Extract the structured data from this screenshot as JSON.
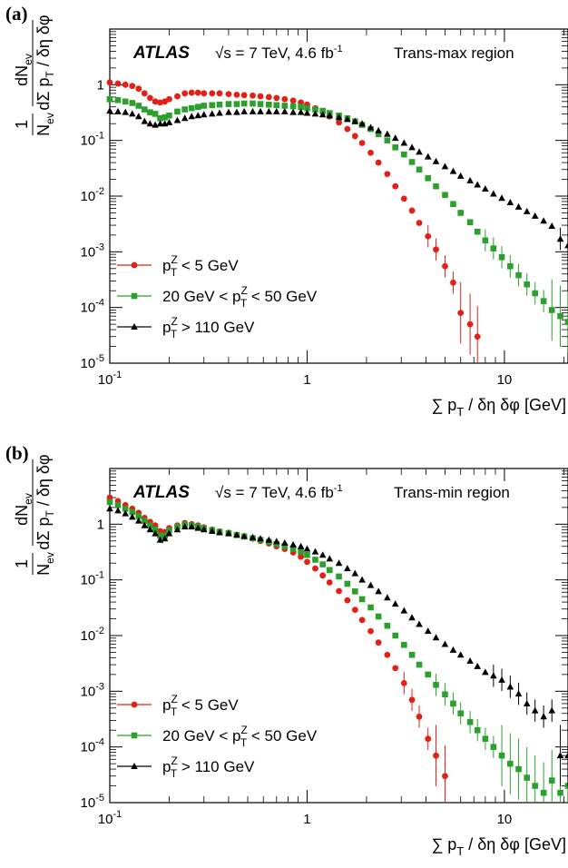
{
  "chart_data": [
    {
      "type": "scatter",
      "panel_label": "(a)",
      "experiment": "ATLAS",
      "energy_text": "√s = 7 TeV, 4.6 fb",
      "energy_sup": "-1",
      "region": "Trans-max region",
      "xlabel": "∑ pT / δη δφ [GeV]",
      "ylabel": "1/Nev dNev / dΣ pT / δη δφ",
      "xscale": "log",
      "yscale": "log",
      "xlim": [
        0.1,
        21
      ],
      "ylim": [
        1e-05,
        10
      ],
      "legend_position": "bottom-left",
      "series": [
        {
          "name": "pTZ < 5 GeV",
          "color": "#e32017",
          "marker": "circle",
          "x": [
            0.1,
            0.11,
            0.12,
            0.13,
            0.14,
            0.15,
            0.16,
            0.17,
            0.18,
            0.19,
            0.2,
            0.22,
            0.24,
            0.26,
            0.28,
            0.3,
            0.33,
            0.36,
            0.4,
            0.44,
            0.48,
            0.53,
            0.58,
            0.64,
            0.7,
            0.77,
            0.85,
            0.93,
            1.0,
            1.1,
            1.2,
            1.3,
            1.45,
            1.6,
            1.75,
            1.9,
            2.1,
            2.3,
            2.55,
            2.8,
            3.1,
            3.4,
            3.7,
            4.1,
            4.5,
            5.0,
            5.5,
            6.0,
            6.7,
            7.3
          ],
          "y": [
            1.1,
            1.05,
            1.0,
            0.95,
            0.85,
            0.7,
            0.58,
            0.5,
            0.48,
            0.5,
            0.55,
            0.62,
            0.7,
            0.72,
            0.72,
            0.7,
            0.7,
            0.7,
            0.68,
            0.66,
            0.65,
            0.64,
            0.62,
            0.6,
            0.58,
            0.55,
            0.52,
            0.48,
            0.44,
            0.38,
            0.32,
            0.27,
            0.21,
            0.16,
            0.12,
            0.09,
            0.06,
            0.04,
            0.025,
            0.015,
            0.009,
            0.0055,
            0.0033,
            0.0019,
            0.0011,
            0.00055,
            0.00028,
            8e-05,
            5e-05,
            3e-05
          ]
        },
        {
          "name": "20 GeV < pTZ < 50 GeV",
          "color": "#2ca02c",
          "marker": "square",
          "x": [
            0.1,
            0.11,
            0.12,
            0.13,
            0.14,
            0.15,
            0.16,
            0.17,
            0.18,
            0.19,
            0.2,
            0.22,
            0.24,
            0.26,
            0.28,
            0.3,
            0.33,
            0.36,
            0.4,
            0.44,
            0.48,
            0.53,
            0.58,
            0.64,
            0.7,
            0.77,
            0.85,
            0.93,
            1.0,
            1.1,
            1.2,
            1.3,
            1.45,
            1.6,
            1.75,
            1.9,
            2.1,
            2.3,
            2.55,
            2.8,
            3.1,
            3.4,
            3.7,
            4.1,
            4.5,
            5.0,
            5.5,
            6.0,
            6.7,
            7.3,
            8.0,
            8.8,
            9.7,
            10.7,
            11.8,
            13.0,
            14.3,
            15.8,
            17.4,
            19.2,
            21.0
          ],
          "y": [
            0.55,
            0.53,
            0.5,
            0.47,
            0.42,
            0.36,
            0.32,
            0.3,
            0.25,
            0.26,
            0.28,
            0.33,
            0.36,
            0.38,
            0.4,
            0.42,
            0.43,
            0.44,
            0.45,
            0.45,
            0.46,
            0.46,
            0.45,
            0.44,
            0.43,
            0.42,
            0.41,
            0.4,
            0.38,
            0.36,
            0.34,
            0.31,
            0.28,
            0.25,
            0.22,
            0.19,
            0.16,
            0.13,
            0.1,
            0.075,
            0.056,
            0.041,
            0.03,
            0.021,
            0.015,
            0.0105,
            0.0072,
            0.005,
            0.0034,
            0.0023,
            0.0016,
            0.00115,
            0.0008,
            0.00055,
            0.00038,
            0.00026,
            0.00018,
            0.00013,
            9e-05,
            7e-05,
            5.5e-05
          ]
        },
        {
          "name": "pTZ > 110 GeV",
          "color": "#000000",
          "marker": "triangle",
          "x": [
            0.1,
            0.11,
            0.12,
            0.13,
            0.14,
            0.15,
            0.16,
            0.17,
            0.18,
            0.19,
            0.2,
            0.22,
            0.24,
            0.26,
            0.28,
            0.3,
            0.33,
            0.36,
            0.4,
            0.44,
            0.48,
            0.53,
            0.58,
            0.64,
            0.7,
            0.77,
            0.85,
            0.93,
            1.0,
            1.1,
            1.2,
            1.3,
            1.45,
            1.6,
            1.75,
            1.9,
            2.1,
            2.3,
            2.55,
            2.8,
            3.1,
            3.4,
            3.7,
            4.1,
            4.5,
            5.0,
            5.5,
            6.0,
            6.7,
            7.3,
            8.0,
            8.8,
            9.7,
            10.7,
            11.8,
            13.0,
            14.3,
            15.8,
            17.4,
            19.2,
            21.0
          ],
          "y": [
            0.34,
            0.33,
            0.32,
            0.3,
            0.27,
            0.22,
            0.2,
            0.19,
            0.2,
            0.2,
            0.21,
            0.23,
            0.25,
            0.27,
            0.28,
            0.29,
            0.3,
            0.31,
            0.32,
            0.32,
            0.33,
            0.33,
            0.33,
            0.33,
            0.33,
            0.33,
            0.32,
            0.32,
            0.31,
            0.3,
            0.29,
            0.28,
            0.26,
            0.24,
            0.22,
            0.2,
            0.17,
            0.15,
            0.13,
            0.11,
            0.09,
            0.075,
            0.062,
            0.051,
            0.042,
            0.034,
            0.028,
            0.023,
            0.019,
            0.016,
            0.0135,
            0.011,
            0.0092,
            0.0077,
            0.0064,
            0.0053,
            0.0044,
            0.0036,
            0.0029,
            0.0017,
            0.0013
          ]
        }
      ]
    },
    {
      "type": "scatter",
      "panel_label": "(b)",
      "experiment": "ATLAS",
      "energy_text": "√s = 7 TeV, 4.6 fb",
      "energy_sup": "-1",
      "region": "Trans-min region",
      "xlabel": "∑ pT / δη δφ [GeV]",
      "ylabel": "1/Nev dNev / dΣ pT / δη δφ",
      "xscale": "log",
      "yscale": "log",
      "xlim": [
        0.1,
        21
      ],
      "ylim": [
        1e-05,
        10
      ],
      "legend_position": "bottom-left",
      "series": [
        {
          "name": "pTZ < 5 GeV",
          "color": "#e32017",
          "marker": "circle",
          "x": [
            0.1,
            0.11,
            0.12,
            0.13,
            0.14,
            0.15,
            0.16,
            0.17,
            0.18,
            0.19,
            0.2,
            0.22,
            0.24,
            0.26,
            0.28,
            0.3,
            0.33,
            0.36,
            0.4,
            0.44,
            0.48,
            0.53,
            0.58,
            0.64,
            0.7,
            0.77,
            0.85,
            0.93,
            1.0,
            1.1,
            1.2,
            1.3,
            1.45,
            1.6,
            1.75,
            1.9,
            2.1,
            2.3,
            2.55,
            2.8,
            3.1,
            3.4,
            3.7,
            4.1,
            4.5,
            5.0
          ],
          "y": [
            3.0,
            2.6,
            2.2,
            1.9,
            1.6,
            1.3,
            1.1,
            0.95,
            0.75,
            0.72,
            0.85,
            0.95,
            1.05,
            1.0,
            0.95,
            0.88,
            0.8,
            0.74,
            0.7,
            0.64,
            0.6,
            0.55,
            0.5,
            0.45,
            0.4,
            0.36,
            0.31,
            0.26,
            0.21,
            0.16,
            0.12,
            0.09,
            0.063,
            0.043,
            0.029,
            0.019,
            0.012,
            0.0075,
            0.0045,
            0.0026,
            0.0014,
            0.0007,
            0.00035,
            0.00014,
            7e-05,
            3e-05
          ]
        },
        {
          "name": "20 GeV < pTZ < 50 GeV",
          "color": "#2ca02c",
          "marker": "square",
          "x": [
            0.1,
            0.11,
            0.12,
            0.13,
            0.14,
            0.15,
            0.16,
            0.17,
            0.18,
            0.19,
            0.2,
            0.22,
            0.24,
            0.26,
            0.28,
            0.3,
            0.33,
            0.36,
            0.4,
            0.44,
            0.48,
            0.53,
            0.58,
            0.64,
            0.7,
            0.77,
            0.85,
            0.93,
            1.0,
            1.1,
            1.2,
            1.3,
            1.45,
            1.6,
            1.75,
            1.9,
            2.1,
            2.3,
            2.55,
            2.8,
            3.1,
            3.4,
            3.7,
            4.1,
            4.5,
            5.0,
            5.5,
            6.0,
            6.7,
            7.3,
            8.0,
            8.8,
            9.7,
            10.7,
            11.8,
            13.0,
            14.3,
            15.8,
            17.4,
            19.2,
            21.0
          ],
          "y": [
            2.5,
            2.2,
            1.9,
            1.65,
            1.4,
            1.15,
            0.95,
            0.8,
            0.62,
            0.62,
            0.78,
            0.9,
            0.98,
            0.95,
            0.9,
            0.84,
            0.78,
            0.73,
            0.69,
            0.64,
            0.6,
            0.56,
            0.52,
            0.48,
            0.44,
            0.4,
            0.36,
            0.32,
            0.28,
            0.23,
            0.19,
            0.15,
            0.115,
            0.085,
            0.062,
            0.045,
            0.032,
            0.022,
            0.015,
            0.01,
            0.0068,
            0.0045,
            0.003,
            0.002,
            0.0013,
            0.00088,
            0.0006,
            0.0004,
            0.00028,
            0.0002,
            0.00014,
            0.0001,
            7e-05,
            5e-05,
            4e-05,
            2.8e-05,
            2e-05,
            1.5e-05,
            2.5e-05,
            1.5e-05,
            2e-05
          ]
        },
        {
          "name": "pTZ > 110 GeV",
          "color": "#000000",
          "marker": "triangle",
          "x": [
            0.1,
            0.11,
            0.12,
            0.13,
            0.14,
            0.15,
            0.16,
            0.17,
            0.18,
            0.19,
            0.2,
            0.22,
            0.24,
            0.26,
            0.28,
            0.3,
            0.33,
            0.36,
            0.4,
            0.44,
            0.48,
            0.53,
            0.58,
            0.64,
            0.7,
            0.77,
            0.85,
            0.93,
            1.0,
            1.1,
            1.2,
            1.3,
            1.45,
            1.6,
            1.75,
            1.9,
            2.1,
            2.3,
            2.55,
            2.8,
            3.1,
            3.4,
            3.7,
            4.1,
            4.5,
            5.0,
            5.5,
            6.0,
            6.7,
            7.3,
            8.0,
            8.8,
            9.7,
            10.7,
            11.8,
            13.0,
            14.3,
            15.8,
            17.4,
            19.2,
            21.0
          ],
          "y": [
            1.9,
            1.75,
            1.55,
            1.35,
            1.15,
            0.95,
            0.8,
            0.68,
            0.52,
            0.55,
            0.68,
            0.8,
            0.9,
            0.9,
            0.85,
            0.8,
            0.75,
            0.71,
            0.68,
            0.64,
            0.61,
            0.58,
            0.55,
            0.52,
            0.49,
            0.46,
            0.43,
            0.4,
            0.36,
            0.32,
            0.28,
            0.24,
            0.2,
            0.16,
            0.13,
            0.1,
            0.08,
            0.062,
            0.048,
            0.037,
            0.028,
            0.021,
            0.016,
            0.012,
            0.0092,
            0.007,
            0.0055,
            0.0045,
            0.0035,
            0.0028,
            0.0022,
            0.0019,
            0.0016,
            0.0012,
            0.0009,
            0.0006,
            0.00045,
            0.00035,
            0.00045,
            7e-05,
            7e-05
          ]
        }
      ]
    }
  ]
}
